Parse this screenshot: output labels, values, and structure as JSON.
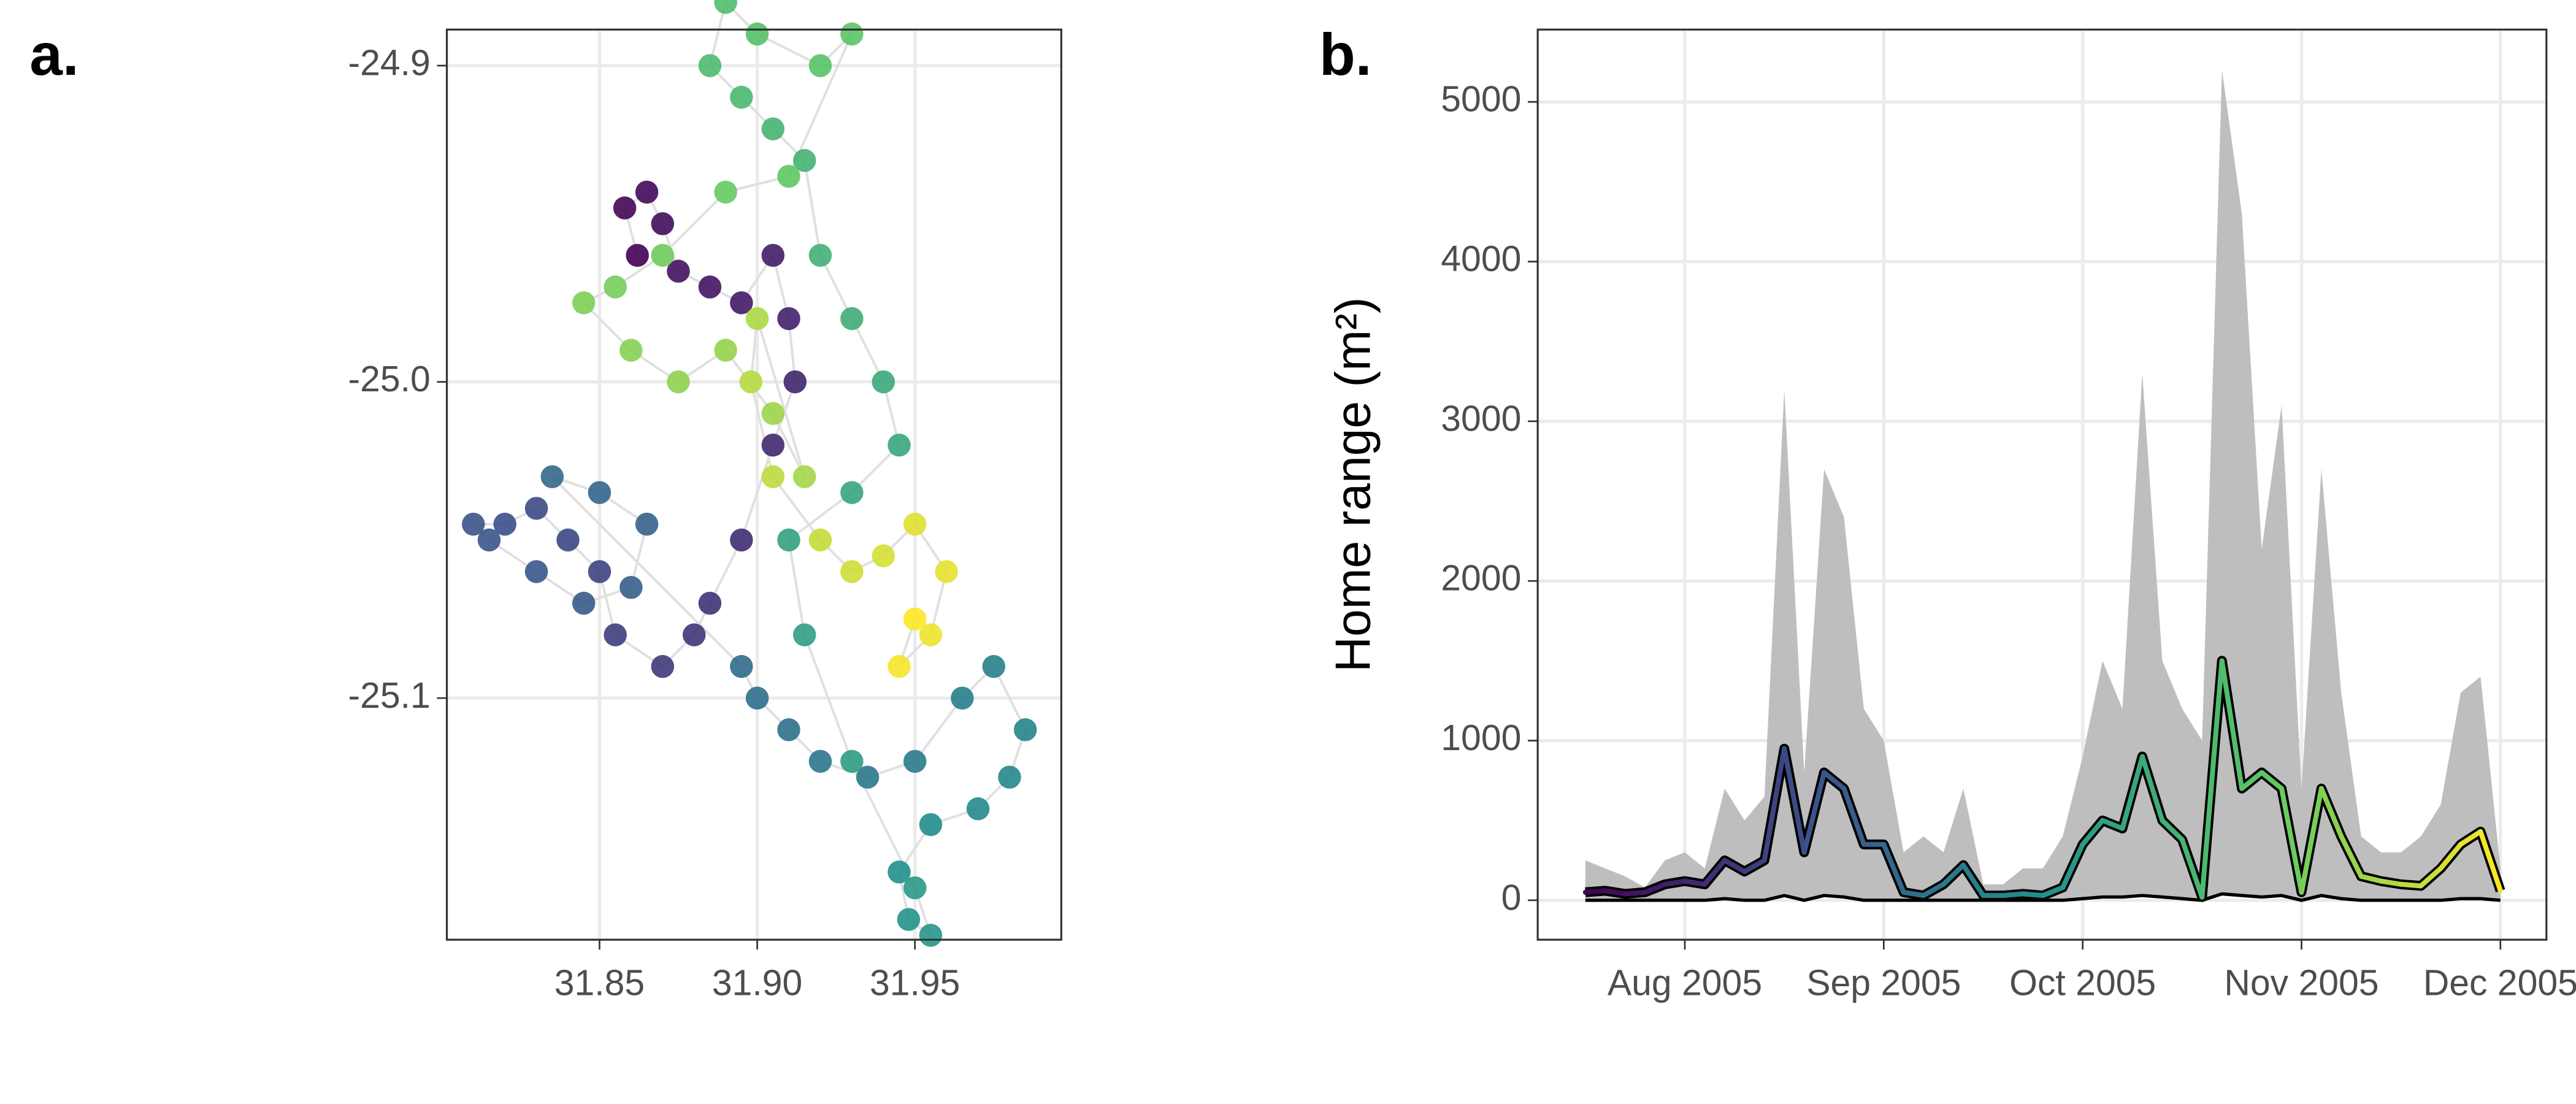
{
  "chart_data": [
    {
      "type": "scatter",
      "title": "a.",
      "x": [
        31.862,
        31.858,
        31.865,
        31.87,
        31.875,
        31.885,
        31.895,
        31.905,
        31.91,
        31.912,
        31.905,
        31.895,
        31.885,
        31.88,
        31.87,
        31.855,
        31.85,
        31.84,
        31.83,
        31.82,
        31.81,
        31.815,
        31.83,
        31.845,
        31.86,
        31.865,
        31.85,
        31.835,
        31.895,
        31.9,
        31.91,
        31.92,
        31.935,
        31.95,
        31.965,
        31.975,
        31.985,
        31.98,
        31.97,
        31.955,
        31.945,
        31.948,
        31.955,
        31.95,
        31.93,
        31.915,
        31.91,
        31.93,
        31.945,
        31.94,
        31.93,
        31.92,
        31.915,
        31.905,
        31.895,
        31.885,
        31.89,
        31.9,
        31.92,
        31.93,
        31.91,
        31.89,
        31.87,
        31.855,
        31.845,
        31.86,
        31.875,
        31.89,
        31.905,
        31.915,
        31.9,
        31.898,
        31.905,
        31.92,
        31.93,
        31.94,
        31.95,
        31.96,
        31.955,
        31.945,
        31.95
      ],
      "values": [
        -24.96,
        -24.945,
        -24.94,
        -24.95,
        -24.965,
        -24.97,
        -24.975,
        -24.96,
        -24.98,
        -25.0,
        -25.02,
        -25.05,
        -25.07,
        -25.08,
        -25.09,
        -25.08,
        -25.06,
        -25.05,
        -25.04,
        -25.045,
        -25.045,
        -25.05,
        -25.06,
        -25.07,
        -25.065,
        -25.045,
        -25.035,
        -25.03,
        -25.09,
        -25.1,
        -25.11,
        -25.12,
        -25.125,
        -25.12,
        -25.1,
        -25.09,
        -25.11,
        -25.125,
        -25.135,
        -25.14,
        -25.155,
        -25.17,
        -25.175,
        -25.16,
        -25.12,
        -25.08,
        -25.05,
        -25.035,
        -25.02,
        -25.0,
        -24.98,
        -24.96,
        -24.93,
        -24.92,
        -24.91,
        -24.9,
        -24.88,
        -24.89,
        -24.9,
        -24.89,
        -24.935,
        -24.94,
        -24.96,
        -24.97,
        -24.975,
        -24.99,
        -25.0,
        -24.99,
        -25.01,
        -25.03,
        -24.98,
        -25.0,
        -25.03,
        -25.05,
        -25.06,
        -25.055,
        -25.045,
        -25.06,
        -25.08,
        -25.09,
        -25.075
      ],
      "colormap": [
        "#440154",
        "#3b528b",
        "#21908c",
        "#5dc863",
        "#fde725"
      ],
      "xlim": [
        31.8016,
        31.9964
      ],
      "ylim": [
        -25.1764,
        -24.8886
      ],
      "xticks": [
        31.85,
        {
          "value": 31.9,
          "label": "31.90"
        },
        31.95
      ],
      "yticks": [
        -24.9,
        {
          "value": -25,
          "label": "-25.0"
        },
        -25.1
      ],
      "grid": true
    },
    {
      "type": "line",
      "title": "b.",
      "ylabel": "Home range (m²)",
      "categories": [
        null,
        null,
        null,
        null,
        null,
        "Aug 2005",
        null,
        null,
        null,
        null,
        null,
        null,
        null,
        null,
        null,
        "Sep 2005",
        null,
        null,
        null,
        null,
        null,
        null,
        null,
        null,
        null,
        "Oct 2005",
        null,
        null,
        null,
        null,
        null,
        null,
        null,
        null,
        null,
        null,
        "Nov 2005",
        null,
        null,
        null,
        null,
        null,
        null,
        null,
        null,
        null,
        "Dec 2005"
      ],
      "values": [
        50,
        60,
        40,
        50,
        100,
        120,
        100,
        250,
        180,
        250,
        950,
        300,
        800,
        700,
        350,
        350,
        50,
        30,
        100,
        220,
        30,
        30,
        40,
        30,
        80,
        350,
        500,
        450,
        900,
        500,
        380,
        20,
        1500,
        700,
        800,
        700,
        50,
        700,
        400,
        150,
        120,
        100,
        90,
        200,
        350,
        430,
        60
      ],
      "upper": [
        250,
        200,
        150,
        80,
        250,
        300,
        200,
        700,
        500,
        650,
        3200,
        800,
        2700,
        2400,
        1200,
        1000,
        300,
        400,
        300,
        700,
        100,
        100,
        200,
        200,
        400,
        900,
        1500,
        1200,
        3300,
        1500,
        1200,
        1000,
        5200,
        4300,
        2200,
        3100,
        700,
        2700,
        1300,
        400,
        300,
        300,
        400,
        600,
        1300,
        1400,
        200
      ],
      "lower": [
        0,
        0,
        0,
        0,
        0,
        0,
        0,
        10,
        0,
        0,
        30,
        0,
        30,
        20,
        0,
        0,
        0,
        0,
        0,
        0,
        0,
        0,
        0,
        0,
        0,
        10,
        20,
        20,
        30,
        20,
        10,
        0,
        40,
        30,
        20,
        30,
        0,
        30,
        10,
        0,
        0,
        0,
        0,
        0,
        10,
        10,
        0
      ],
      "colormap": [
        "#440154",
        "#3b528b",
        "#21908c",
        "#5dc863",
        "#fde725"
      ],
      "ribbon_color": "#bebebe",
      "ylim": [
        -247,
        5453
      ],
      "yticks": [
        0,
        1000,
        2000,
        3000,
        4000,
        5000
      ],
      "grid": true
    }
  ]
}
